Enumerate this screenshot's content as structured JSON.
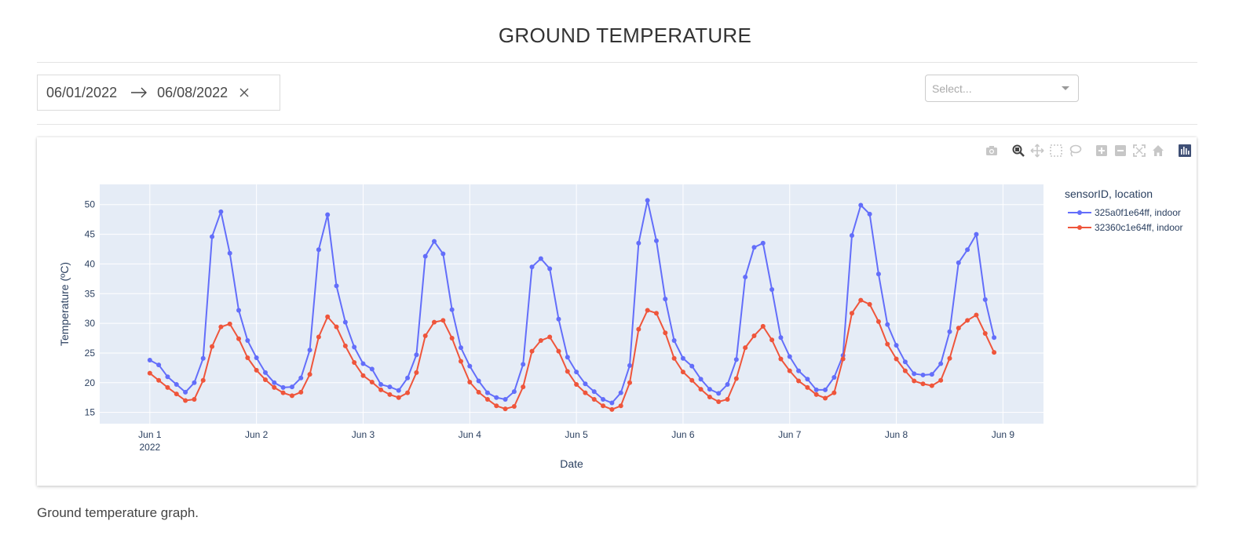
{
  "page": {
    "title": "GROUND TEMPERATURE",
    "caption": "Ground temperature graph."
  },
  "date_range": {
    "start": "06/01/2022",
    "end": "06/08/2022"
  },
  "dropdown": {
    "placeholder": "Select..."
  },
  "modebar": {
    "buttons": [
      "camera-icon",
      "zoom-icon",
      "pan-icon",
      "box-select-icon",
      "lasso-select-icon",
      "zoom-in-icon",
      "zoom-out-icon",
      "autoscale-icon",
      "reset-axes-icon",
      "plotly-logo-icon"
    ],
    "active": "zoom-icon"
  },
  "chart_data": {
    "type": "line",
    "title": "",
    "xlabel": "Date",
    "ylabel": "Temperature (ºC)",
    "x_ticks": [
      "Jun 1",
      "Jun 2",
      "Jun 3",
      "Jun 4",
      "Jun 5",
      "Jun 6",
      "Jun 7",
      "Jun 8",
      "Jun 9"
    ],
    "x_tick_sublabel": "2022",
    "y_ticks": [
      15,
      20,
      25,
      30,
      35,
      40,
      45,
      50
    ],
    "xlim_days": [
      -0.47,
      8.38
    ],
    "ylim": [
      13.1,
      53.4
    ],
    "x_start": "2022-06-01T00:00",
    "x_step_hours": 2,
    "legend_title": "sensorID, location",
    "legend_position": "right",
    "grid": true,
    "background": "#E5ECF6",
    "series": [
      {
        "name": "325a0f1e64ff, indoor",
        "color": "#636EFA",
        "values": [
          23.8,
          23.0,
          21.0,
          19.7,
          18.4,
          20.0,
          24.1,
          44.6,
          48.8,
          41.8,
          32.2,
          27.1,
          24.2,
          21.7,
          20.0,
          19.2,
          19.3,
          20.8,
          25.5,
          42.4,
          48.3,
          36.3,
          30.2,
          26.0,
          23.2,
          22.3,
          19.7,
          19.3,
          18.7,
          20.8,
          24.7,
          41.3,
          43.8,
          41.7,
          32.3,
          25.9,
          22.8,
          20.3,
          18.3,
          17.5,
          17.2,
          18.5,
          23.1,
          39.5,
          40.9,
          39.2,
          30.7,
          24.3,
          21.8,
          19.8,
          18.5,
          17.2,
          16.6,
          18.3,
          22.9,
          43.5,
          50.7,
          43.9,
          34.1,
          27.1,
          24.1,
          22.8,
          20.6,
          18.9,
          18.2,
          19.7,
          23.9,
          37.8,
          42.8,
          43.5,
          35.7,
          27.6,
          24.4,
          22.0,
          20.6,
          18.8,
          18.8,
          20.9,
          24.6,
          44.8,
          49.9,
          48.4,
          38.3,
          29.8,
          26.3,
          23.5,
          21.5,
          21.3,
          21.4,
          23.2,
          28.6,
          40.2,
          42.4,
          45.0,
          34.0,
          27.6
        ]
      },
      {
        "name": "32360c1e64ff, indoor",
        "color": "#EF553B",
        "values": [
          21.6,
          20.4,
          19.2,
          18.1,
          17.0,
          17.2,
          20.4,
          26.1,
          29.4,
          29.9,
          27.4,
          24.2,
          22.1,
          20.5,
          19.2,
          18.3,
          17.8,
          18.4,
          21.4,
          27.7,
          31.1,
          29.4,
          26.2,
          23.4,
          21.2,
          20.1,
          18.8,
          18.0,
          17.5,
          18.3,
          21.7,
          27.9,
          30.2,
          30.5,
          27.5,
          23.6,
          20.1,
          18.4,
          17.2,
          16.1,
          15.6,
          16.0,
          19.3,
          25.3,
          27.1,
          27.7,
          25.3,
          21.9,
          19.7,
          18.3,
          17.2,
          16.1,
          15.5,
          16.1,
          20.0,
          29.0,
          32.2,
          31.7,
          28.4,
          24.1,
          21.8,
          20.4,
          18.9,
          17.6,
          16.8,
          17.2,
          20.7,
          25.9,
          27.9,
          29.5,
          27.2,
          24.0,
          22.0,
          20.3,
          19.2,
          18.0,
          17.4,
          18.3,
          24.0,
          31.7,
          33.9,
          33.2,
          30.3,
          26.5,
          24.0,
          22.0,
          20.3,
          19.8,
          19.5,
          20.4,
          24.1,
          29.2,
          30.5,
          31.4,
          28.3,
          25.1
        ]
      }
    ]
  }
}
